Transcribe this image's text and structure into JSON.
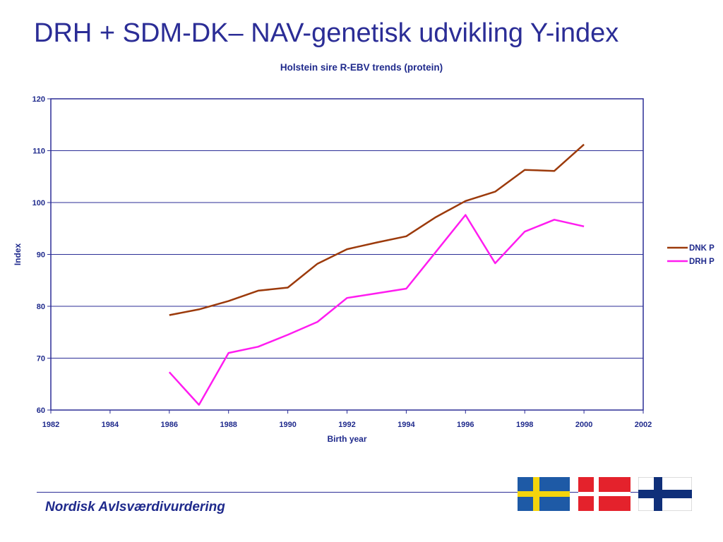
{
  "slide": {
    "title": "DRH + SDM-DK– NAV-genetisk udvikling  Y-index",
    "footer": "Nordisk Avlsværdivurdering"
  },
  "flags": [
    {
      "name": "sweden-flag",
      "field": "#1e5aa6",
      "cross": "#f4d40c"
    },
    {
      "name": "denmark-flag",
      "field": "#e4222c",
      "cross": "#ffffff"
    },
    {
      "name": "finland-flag",
      "field": "#ffffff",
      "cross": "#0f2f79"
    }
  ],
  "chart_data": {
    "type": "line",
    "title": "Holstein sire R-EBV trends (protein)",
    "xlabel": "Birth year",
    "ylabel": "Index",
    "xlim": [
      1982,
      2002
    ],
    "ylim": [
      60,
      120
    ],
    "xticks": [
      1982,
      1984,
      1986,
      1988,
      1990,
      1992,
      1994,
      1996,
      1998,
      2000,
      2002
    ],
    "yticks": [
      60,
      70,
      80,
      90,
      100,
      110,
      120
    ],
    "grid": "horizontal",
    "legend": "right",
    "series": [
      {
        "name": "DNK P",
        "color": "#9c3a0b",
        "x": [
          1986,
          1987,
          1988,
          1989,
          1990,
          1991,
          1992,
          1993,
          1994,
          1995,
          1996,
          1997,
          1998,
          1999,
          2000
        ],
        "y": [
          78.3,
          79.4,
          81.0,
          83.0,
          83.6,
          88.2,
          91.0,
          92.3,
          93.5,
          97.2,
          100.3,
          102.1,
          106.3,
          106.1,
          111.2
        ]
      },
      {
        "name": "DRH P",
        "color": "#ff1cf0",
        "x": [
          1986,
          1987,
          1988,
          1989,
          1990,
          1991,
          1992,
          1993,
          1994,
          1995,
          1996,
          1997,
          1998,
          1999,
          2000
        ],
        "y": [
          67.3,
          61.0,
          71.0,
          72.2,
          74.5,
          77.0,
          81.6,
          82.5,
          83.4,
          90.5,
          97.6,
          88.3,
          94.4,
          96.7,
          95.4
        ]
      }
    ]
  }
}
